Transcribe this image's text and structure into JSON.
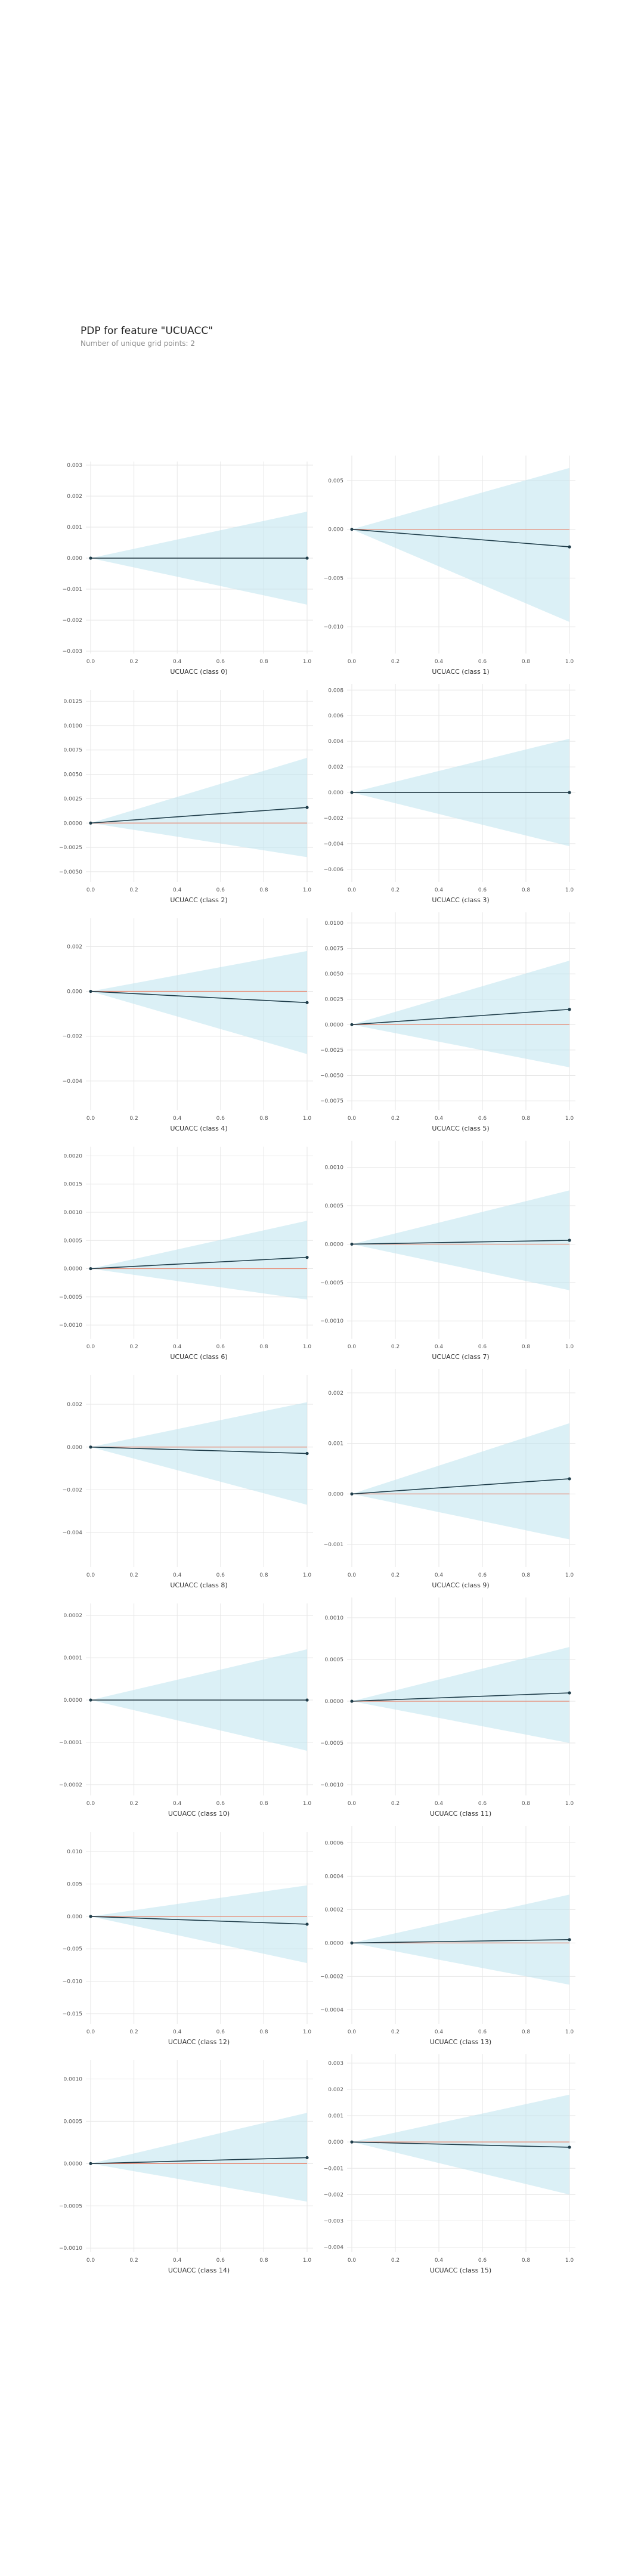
{
  "title": "PDP for feature \"UCUACC\"",
  "subtitle": "Number of unique grid points: 2",
  "colors": {
    "band": "#bde3ef",
    "line": "#1f3d4a",
    "baseline": "#e8866f",
    "grid": "#e6e6e6",
    "marker": "#1f3d4a"
  },
  "chart_data": [
    {
      "type": "line",
      "xlabel": "UCUACC (class 0)",
      "x": [
        0.0,
        1.0
      ],
      "y": [
        0.0,
        0.0
      ],
      "lower": [
        0.0,
        -0.0015
      ],
      "upper": [
        0.0,
        0.0015
      ],
      "ylim": [
        -0.003,
        0.003
      ],
      "yticks": [
        "0.003",
        "0.002",
        "0.001",
        "0.000",
        "−0.001",
        "−0.002",
        "−0.003"
      ],
      "ytick_values": [
        0.003,
        0.002,
        0.001,
        0.0,
        -0.001,
        -0.002,
        -0.003
      ],
      "xticks": [
        "0.0",
        "0.2",
        "0.4",
        "0.6",
        "0.8",
        "1.0"
      ]
    },
    {
      "type": "line",
      "xlabel": "UCUACC (class 1)",
      "x": [
        0.0,
        1.0
      ],
      "y": [
        0.0,
        -0.0018
      ],
      "lower": [
        0.0,
        -0.0095
      ],
      "upper": [
        0.0,
        0.0063
      ],
      "ylim": [
        -0.0125,
        0.0072
      ],
      "yticks": [
        "0.005",
        "0.000",
        "−0.005",
        "−0.010"
      ],
      "ytick_values": [
        0.005,
        0.0,
        -0.005,
        -0.01
      ],
      "xticks": [
        "0.0",
        "0.2",
        "0.4",
        "0.6",
        "0.8",
        "1.0"
      ]
    },
    {
      "type": "line",
      "xlabel": "UCUACC (class 2)",
      "x": [
        0.0,
        1.0
      ],
      "y": [
        0.0,
        0.0016
      ],
      "lower": [
        0.0,
        -0.0035
      ],
      "upper": [
        0.0,
        0.0067
      ],
      "ylim": [
        -0.0058,
        0.0133
      ],
      "yticks": [
        "0.0125",
        "0.0100",
        "0.0075",
        "0.0050",
        "0.0025",
        "0.0000",
        "−0.0025",
        "−0.0050"
      ],
      "ytick_values": [
        0.0125,
        0.01,
        0.0075,
        0.005,
        0.0025,
        0.0,
        -0.0025,
        -0.005
      ],
      "xticks": [
        "0.0",
        "0.2",
        "0.4",
        "0.6",
        "0.8",
        "1.0"
      ]
    },
    {
      "type": "line",
      "xlabel": "UCUACC (class 3)",
      "x": [
        0.0,
        1.0
      ],
      "y": [
        0.0,
        0.0
      ],
      "lower": [
        0.0,
        -0.0042
      ],
      "upper": [
        0.0,
        0.0042
      ],
      "ylim": [
        -0.0068,
        0.0082
      ],
      "yticks": [
        "0.008",
        "0.006",
        "0.004",
        "0.002",
        "0.000",
        "−0.002",
        "−0.004",
        "−0.006"
      ],
      "ytick_values": [
        0.008,
        0.006,
        0.004,
        0.002,
        0.0,
        -0.002,
        -0.004,
        -0.006
      ],
      "xticks": [
        "0.0",
        "0.2",
        "0.4",
        "0.6",
        "0.8",
        "1.0"
      ]
    },
    {
      "type": "line",
      "xlabel": "UCUACC (class 4)",
      "x": [
        0.0,
        1.0
      ],
      "y": [
        0.0,
        -0.0005
      ],
      "lower": [
        0.0,
        -0.0028
      ],
      "upper": [
        0.0,
        0.0018
      ],
      "ylim": [
        -0.0052,
        0.0031
      ],
      "yticks": [
        "0.002",
        "0.000",
        "−0.002",
        "−0.004"
      ],
      "ytick_values": [
        0.002,
        0.0,
        -0.002,
        -0.004
      ],
      "xticks": [
        "0.0",
        "0.2",
        "0.4",
        "0.6",
        "0.8",
        "1.0"
      ]
    },
    {
      "type": "line",
      "xlabel": "UCUACC (class 5)",
      "x": [
        0.0,
        1.0
      ],
      "y": [
        0.0,
        0.0015
      ],
      "lower": [
        0.0,
        -0.0042
      ],
      "upper": [
        0.0,
        0.0063
      ],
      "ylim": [
        -0.0082,
        0.0107
      ],
      "yticks": [
        "0.0100",
        "0.0075",
        "0.0050",
        "0.0025",
        "0.0000",
        "−0.0025",
        "−0.0050",
        "−0.0075"
      ],
      "ytick_values": [
        0.01,
        0.0075,
        0.005,
        0.0025,
        0.0,
        -0.0025,
        -0.005,
        -0.0075
      ],
      "xticks": [
        "0.0",
        "0.2",
        "0.4",
        "0.6",
        "0.8",
        "1.0"
      ]
    },
    {
      "type": "line",
      "xlabel": "UCUACC (class 6)",
      "x": [
        0.0,
        1.0
      ],
      "y": [
        0.0,
        0.0002
      ],
      "lower": [
        0.0,
        -0.00055
      ],
      "upper": [
        0.0,
        0.00085
      ],
      "ylim": [
        -0.0012,
        0.0021
      ],
      "yticks": [
        "0.0020",
        "0.0015",
        "0.0010",
        "0.0005",
        "0.0000",
        "−0.0005",
        "−0.0010"
      ],
      "ytick_values": [
        0.002,
        0.0015,
        0.001,
        0.0005,
        0.0,
        -0.0005,
        -0.001
      ],
      "xticks": [
        "0.0",
        "0.2",
        "0.4",
        "0.6",
        "0.8",
        "1.0"
      ]
    },
    {
      "type": "line",
      "xlabel": "UCUACC (class 7)",
      "x": [
        0.0,
        1.0
      ],
      "y": [
        0.0,
        5e-05
      ],
      "lower": [
        0.0,
        -0.0006
      ],
      "upper": [
        0.0,
        0.0007
      ],
      "ylim": [
        -0.0012,
        0.0013
      ],
      "yticks": [
        "0.0010",
        "0.0005",
        "0.0000",
        "−0.0005",
        "−0.0010"
      ],
      "ytick_values": [
        0.001,
        0.0005,
        0.0,
        -0.0005,
        -0.001
      ],
      "xticks": [
        "0.0",
        "0.2",
        "0.4",
        "0.6",
        "0.8",
        "1.0"
      ]
    },
    {
      "type": "line",
      "xlabel": "UCUACC (class 8)",
      "x": [
        0.0,
        1.0
      ],
      "y": [
        0.0,
        -0.0003
      ],
      "lower": [
        0.0,
        -0.0027
      ],
      "upper": [
        0.0,
        0.0021
      ],
      "ylim": [
        -0.0055,
        0.0032
      ],
      "yticks": [
        "0.002",
        "0.000",
        "−0.002",
        "−0.004"
      ],
      "ytick_values": [
        0.002,
        0.0,
        -0.002,
        -0.004
      ],
      "xticks": [
        "0.0",
        "0.2",
        "0.4",
        "0.6",
        "0.8",
        "1.0"
      ]
    },
    {
      "type": "line",
      "xlabel": "UCUACC (class 9)",
      "x": [
        0.0,
        1.0
      ],
      "y": [
        0.0,
        0.0003
      ],
      "lower": [
        0.0,
        -0.0009
      ],
      "upper": [
        0.0,
        0.0014
      ],
      "ylim": [
        -0.0014,
        0.0024
      ],
      "yticks": [
        "0.002",
        "0.001",
        "0.000",
        "−0.001"
      ],
      "ytick_values": [
        0.002,
        0.001,
        0.0,
        -0.001
      ],
      "xticks": [
        "0.0",
        "0.2",
        "0.4",
        "0.6",
        "0.8",
        "1.0"
      ]
    },
    {
      "type": "line",
      "xlabel": "UCUACC (class 10)",
      "x": [
        0.0,
        1.0
      ],
      "y": [
        0.0,
        0.0
      ],
      "lower": [
        0.0,
        -0.00012
      ],
      "upper": [
        0.0,
        0.00012
      ],
      "ylim": [
        -0.00022,
        0.00022
      ],
      "yticks": [
        "0.0002",
        "0.0001",
        "0.0000",
        "−0.0001",
        "−0.0002"
      ],
      "ytick_values": [
        0.0002,
        0.0001,
        0.0,
        -0.0001,
        -0.0002
      ],
      "xticks": [
        "0.0",
        "0.2",
        "0.4",
        "0.6",
        "0.8",
        "1.0"
      ]
    },
    {
      "type": "line",
      "xlabel": "UCUACC (class 11)",
      "x": [
        0.0,
        1.0
      ],
      "y": [
        0.0,
        0.0001
      ],
      "lower": [
        0.0,
        -0.0005
      ],
      "upper": [
        0.0,
        0.00065
      ],
      "ylim": [
        -0.0011,
        0.0012
      ],
      "yticks": [
        "0.0010",
        "0.0005",
        "0.0000",
        "−0.0005",
        "−0.0010"
      ],
      "ytick_values": [
        0.001,
        0.0005,
        0.0,
        -0.0005,
        -0.001
      ],
      "xticks": [
        "0.0",
        "0.2",
        "0.4",
        "0.6",
        "0.8",
        "1.0"
      ]
    },
    {
      "type": "line",
      "xlabel": "UCUACC (class 12)",
      "x": [
        0.0,
        1.0
      ],
      "y": [
        0.0,
        -0.0012
      ],
      "lower": [
        0.0,
        -0.0072
      ],
      "upper": [
        0.0,
        0.0048
      ],
      "ylim": [
        -0.0162,
        0.0125
      ],
      "yticks": [
        "0.010",
        "0.005",
        "0.000",
        "−0.005",
        "−0.010",
        "−0.015"
      ],
      "ytick_values": [
        0.01,
        0.005,
        0.0,
        -0.005,
        -0.01,
        -0.015
      ],
      "xticks": [
        "0.0",
        "0.2",
        "0.4",
        "0.6",
        "0.8",
        "1.0"
      ]
    },
    {
      "type": "line",
      "xlabel": "UCUACC (class 13)",
      "x": [
        0.0,
        1.0
      ],
      "y": [
        0.0,
        2e-05
      ],
      "lower": [
        0.0,
        -0.00025
      ],
      "upper": [
        0.0,
        0.00029
      ],
      "ylim": [
        -0.00047,
        0.00068
      ],
      "yticks": [
        "0.0006",
        "0.0004",
        "0.0002",
        "0.0000",
        "−0.0002",
        "−0.0004"
      ],
      "ytick_values": [
        0.0006,
        0.0004,
        0.0002,
        0.0,
        -0.0002,
        -0.0004
      ],
      "xticks": [
        "0.0",
        "0.2",
        "0.4",
        "0.6",
        "0.8",
        "1.0"
      ]
    },
    {
      "type": "line",
      "xlabel": "UCUACC (class 14)",
      "x": [
        0.0,
        1.0
      ],
      "y": [
        0.0,
        7e-05
      ],
      "lower": [
        0.0,
        -0.00045
      ],
      "upper": [
        0.0,
        0.0006
      ],
      "ylim": [
        -0.00102,
        0.00118
      ],
      "yticks": [
        "0.0010",
        "0.0005",
        "0.0000",
        "−0.0005",
        "−0.0010"
      ],
      "ytick_values": [
        0.001,
        0.0005,
        0.0,
        -0.0005,
        -0.001
      ],
      "xticks": [
        "0.0",
        "0.2",
        "0.4",
        "0.6",
        "0.8",
        "1.0"
      ]
    },
    {
      "type": "line",
      "xlabel": "UCUACC (class 15)",
      "x": [
        0.0,
        1.0
      ],
      "y": [
        0.0,
        -0.0002
      ],
      "lower": [
        0.0,
        -0.002
      ],
      "upper": [
        0.0,
        0.0018
      ],
      "ylim": [
        -0.0041,
        0.0032
      ],
      "yticks": [
        "0.003",
        "0.002",
        "0.001",
        "0.000",
        "−0.001",
        "−0.002",
        "−0.003",
        "−0.004"
      ],
      "ytick_values": [
        0.003,
        0.002,
        0.001,
        0.0,
        -0.001,
        -0.002,
        -0.003,
        -0.004
      ],
      "xticks": [
        "0.0",
        "0.2",
        "0.4",
        "0.6",
        "0.8",
        "1.0"
      ]
    }
  ]
}
